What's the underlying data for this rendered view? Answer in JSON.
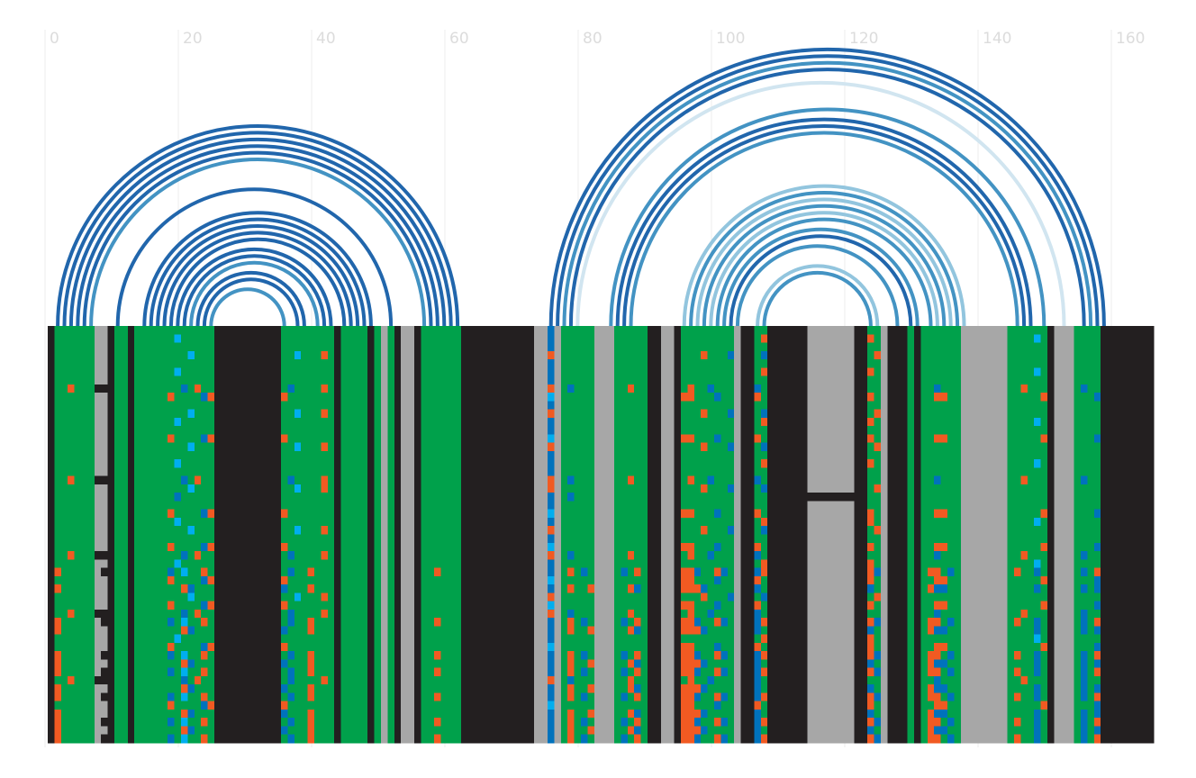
{
  "chart_data": {
    "type": "arc",
    "xlim": [
      0,
      160
    ],
    "xticks": [
      0,
      20,
      40,
      60,
      80,
      100,
      120,
      140,
      160
    ],
    "grid": true,
    "arcs": [
      {
        "i": 1,
        "j": 61,
        "color": "#2166ac"
      },
      {
        "i": 2,
        "j": 60,
        "color": "#2166ac"
      },
      {
        "i": 3,
        "j": 59,
        "color": "#2166ac"
      },
      {
        "i": 4,
        "j": 58,
        "color": "#2166ac"
      },
      {
        "i": 5,
        "j": 57,
        "color": "#2166ac"
      },
      {
        "i": 6,
        "j": 56,
        "color": "#4393c3"
      },
      {
        "i": 10,
        "j": 51,
        "color": "#2166ac"
      },
      {
        "i": 14,
        "j": 48,
        "color": "#2166ac"
      },
      {
        "i": 15,
        "j": 47,
        "color": "#2166ac"
      },
      {
        "i": 16,
        "j": 46,
        "color": "#2166ac"
      },
      {
        "i": 17,
        "j": 45,
        "color": "#2166ac"
      },
      {
        "i": 18,
        "j": 44,
        "color": "#2166ac"
      },
      {
        "i": 19,
        "j": 42,
        "color": "#2166ac"
      },
      {
        "i": 20,
        "j": 41,
        "color": "#2166ac"
      },
      {
        "i": 21,
        "j": 40,
        "color": "#4393c3"
      },
      {
        "i": 22,
        "j": 38,
        "color": "#2166ac"
      },
      {
        "i": 23,
        "j": 37,
        "color": "#2166ac"
      },
      {
        "i": 24,
        "j": 35,
        "color": "#4393c3"
      },
      {
        "i": 75,
        "j": 158,
        "color": "#2166ac"
      },
      {
        "i": 76,
        "j": 157,
        "color": "#2166ac"
      },
      {
        "i": 77,
        "j": 156,
        "color": "#4393c3"
      },
      {
        "i": 78,
        "j": 155,
        "color": "#2166ac"
      },
      {
        "i": 79,
        "j": 152,
        "color": "#d1e5f0"
      },
      {
        "i": 84,
        "j": 149,
        "color": "#4393c3"
      },
      {
        "i": 85,
        "j": 147,
        "color": "#2166ac"
      },
      {
        "i": 86,
        "j": 146,
        "color": "#2166ac"
      },
      {
        "i": 87,
        "j": 145,
        "color": "#4393c3"
      },
      {
        "i": 95,
        "j": 137,
        "color": "#92c5de"
      },
      {
        "i": 96,
        "j": 136,
        "color": "#4393c3"
      },
      {
        "i": 97,
        "j": 135,
        "color": "#92c5de"
      },
      {
        "i": 98,
        "j": 134,
        "color": "#4393c3"
      },
      {
        "i": 99,
        "j": 133,
        "color": "#92c5de"
      },
      {
        "i": 100,
        "j": 132,
        "color": "#4393c3"
      },
      {
        "i": 101,
        "j": 130,
        "color": "#4393c3"
      },
      {
        "i": 102,
        "j": 129,
        "color": "#2166ac"
      },
      {
        "i": 103,
        "j": 127,
        "color": "#4393c3"
      },
      {
        "i": 106,
        "j": 124,
        "color": "#92c5de"
      },
      {
        "i": 107,
        "j": 123,
        "color": "#4393c3"
      }
    ],
    "alignment": {
      "palette": {
        "G": "#00a14b",
        "K": "#231f20",
        "A": "#a7a7a7",
        "O": "#f15a22",
        "B": "#0072bc",
        "C": "#00aeef"
      },
      "rows": [
        "KGGGGGGAAKGGKGGGGGGGGGGGGKKKKKKKKKKGGGGGGGGKGGGGKGAGKAAKGGGGGGKKKKKKKKKKKAABAGGGGGAAAGGGGGKKAAKGGGGGGGGAKKGGKKKKKKAAAAAAAKKGGAKKKGKGGGGGGAAAAAAAGGGGGGKAAAGGGGKKKKKKKK",
        "KGGGGGGAAKGGKGGGGGGCGGGGGKKKKKKKKKKGGGGGGGGKGGGGKGAGKAAKGGGGGGKKKKKKKKKKKAABAGGGGGAAAGGGGGKKAAKGGGGGGGGAKKGOKKKKKKAAAAAAAKKOGAKKKGKGGGGGGAAAAAAAGGGGCGKAAAGGGGKKKKKKKK",
        "KGGGGGGAAKGGKGGGGGGGGGGGGKKKKKKKKKKGGGGGGGGKGGGGKGAGKAAKGGGGGGKKKKKKKKKKKAABAGGGGGAAAGGGGGKKAAKGGGGGGGGAKKGGKKKKKKAAAAAAAKKGGAKKKGKGGGGGGAAAAAAAGGGGGGKAAAGGGGKKKKKKKK",
        "KGGGGGGAAKGGKGGGGGGGGCGGGKKKKKKKKKKGGCGGGOGKGGGGKGAGKAAKGGGGGGKKKKKKKKKKKAAOAGGGGGAAAGGGGGKKAAKGGGOGGGBAKKGBKKKKKKAAAAAAAKKGOAKKKGKGGGGGGAAAAAAAGGGGGGKAAAGGGGKKKKKKKK",
        "KGGGGGGAAKGGKGGGGGGGGGGGGKKKKKKKKKKGGGGGGGGKGGGGKGAGKAAKGGGGGGKKKKKKKKKKKAABAGGGGGAAAGGGGGKKAAKGGGGGGGGAKKGGKKKKKKAAAAAAAKKGGAKKKGKGGGGGGAAAAAAAGGGGGGKAAAGGGGKKKKKKKK",
        "KGGGGGGAAKGGKGGGGGGCGGGGGKKKKKKKKKKGGGGGGGGKGGGGKGAGKAAKGGGGGGKKKKKKKKKKKAABAGGGGGAAAGGGGGKKAAKGGGGGGGGAKKGOKKKKKKAAAAAAAKKOGAKKKGKGGGGGGAAAAAAAGGGGCGKAAAGGGGKKKKKKKK",
        "KGGGGGGAAKGGKGGGGGGGGGGGGKKKKKKKKKKGGGGGGGGKGGGGKGAGKAAKGGGGGGKKKKKKKKKKKAABAGGGGGAAAGGGGGKKAAKGGGGGGGGAKKGGKKKKKKAAAAAAAKKGGAKKKGKGGGGGGAAAAAAAGGGGGGKAAAGGGGKKKKKKKK",
        "KGGOGGGKKKGGKGGGGGGGBGOGGKKKKKKKKKKGBGGGGOGKGGGGKGAGKAAKGGGGGGKKKKKKKKKKKAAOAGBGGGAAAGGOGGKKAAKGOGGBGGGAKKBGKKKKKKAAAAAAAKKGGAKKKGKGGBGGGAAAAAAAGGOGGGKAAAGBGGKKKKKKKK",
        "KGGGGGGAAKGGKGGGGGOGGGGBOKKKKKKKKKKOGGGGGGGKGGGGKGAGKAAKGGGGGGKKKKKKKKKKKAACAGGGGGAAAGGGGGKKAAKOOGGGBGGAKKOGKKKKKKAAAAAAAKKOGAKKKGKGGOOGGAAAAAAAGGGGGOKAAAGGGBKKKKKKKK",
        "KGGGGGGAAKGGKGGGGGGGGGGGGKKKKKKKKKKGGGGGGGGKGGGGKGAGKAAKGGGGGGKKKKKKKKKKKAABAGGGGGAAAGGGGGKKAAKGGGGGGGGAKKGGKKKKKKAAAAAAAKKGGAKKKGKGGGGGGAAAAAAAGGGGGGKAAAGGGGKKKKKKKK",
        "KGGGGGGAAKGGKGGGGGGGGCGGGKKKKKKKKKKGGCGGGOGKGGGGKGAGKAAKGGGGGGKKKKKKKKKKKAAOAGGGGGAAAGGGGGKKAAKGGGOGGGBAKKGBKKKKKKAAAAAAAKKGOAKKKGKGGGGGGAAAAAAAGGGGGGKAAAGGGGKKKKKKKK",
        "KGGGGGGAAKGGKGGGGGGCGGGGGKKKKKKKKKKGGGGGGGGKGGGGKGAGKAAKGGGGGGKKKKKKKKKKKAABAGGGGGAAAGGGGGKKAAKGGGGGGGGAKKGOKKKKKKAAAAAAAKKOGAKKKGKGGGGGGAAAAAAAGGGGCGKAAAGGGGKKKKKKKK",
        "KGGGGGGAAKGGKGGGGGGGGGGGGKKKKKKKKKKGGGGGGGGKGGGGKGAGKAAKGGGGGGKKKKKKKKKKKAABAGGGGGAAAGGGGGKKAAKGGGGGGGGAKKGGKKKKKKAAAAAAAKKGGAKKKGKGGGGGGAAAAAAAGGGGGGKAAAGGGGKKKKKKKK",
        "KGGGGGGAAKGGKGGGGGOGGGGBOKKKKKKKKKKOGGGGGGGKGGGGKGAGKAAKGGGGGGKKKKKKKKKKKAACAGGGGGAAAGGGGGKKAAKOOGGGBGGAKKOGKKKKKKAAAAAAAKKOGAKKKGKGGOOGGAAAAAAAGGGGGOKAAAGGGBKKKKKKKK",
        "KGGGGGGAAKGGKGGGGGGGGCGGGKKKKKKKKKKGGCGGGOGKGGGGKGAGKAAKGGGGGGKKKKKKKKKKKAAOAGGGGGAAAGGGGGKKAAKGGGOGGGBAKKGBKKKKKKAAAAAAAKKGOAKKKGKGGGGGGAAAAAAAGGGGGGKAAAGGGGKKKKKKKK",
        "KGGGGGGAAKGGKGGGGGGGGGGGGKKKKKKKKKKGGGGGGGGKGGGGKGAGKAAKGGGGGGKKKKKKKKKKKAABAGGGGGAAAGGGGGKKAAKGGGGGGGGAKKGGKKKKKKAAAAAAAKKGGAKKKGKGGGGGGAAAAAAAGGGGGGKAAAGGGGKKKKKKKK",
        "KGGGGGGAAKGGKGGGGGGCGGGGGKKKKKKKKKKGGGGGGGGKGGGGKGAGKAAKGGGGGGKKKKKKKKKKKAABAGGGGGAAAGGGGGKKAAKGGGGGGGGAKKGOKKKKKKAAAAAAAKKOGAKKKGKGGGGGGAAAAAAAGGGGCGKAAAGGGGKKKKKKKK",
        "KGGGGGGAAKGGKGGGGGGGGGGGGKKKKKKKKKKGGGGGGGGKGGGGKGAGKAAKGGGGGGKKKKKKKKKKKAABAGGGGGAAAGGGGGKKAAKGGGGGGGGAKKGGKKKKKKAAAAAAAKKGGAKKKGKGGGGGGAAAAAAAGGGGGGKAAAGGGGKKKKKKKK",
        "KGGOGGGKKKGGKGGGGGGGBGOGGKKKKKKKKKKGBGGGGOGKGGGGKGAGKAAKGGGGGGKKKKKKKKKKKAAOAGBGGGAAAGGOGGKKAAKGOGGBGGGAKKBGKKKKKKAAAAAAAKKGGAKKKGKGGBGGGAAAAAAAGGOGGGKAAAGBGGKKKKKKKK",
        "KGGGGGGAAKGGKGGGGGGGGCGGGKKKKKKKKKKGGCGGGOGKGGGGKGAGKAAKGGGGGGKKKKKKKKKKKAAOAGGGGGAAAGGGGGKKAAKGGGOGGGBAKKGBKKKKKKAAAAAAAKKGOAKKKGKGGGGGGAAAAAAAGGGGGGKAAAGGGGKKKKKKKK",
        "KGGGGGGAAKGGKGGGGGGBGGGGGKKKKKKKKKKGGGGGGGGKGGGGKGAGKAAKGGGGGGKKKKKKKKKKKAABAGBGGGAAAGGGGGKKAAKGGGGGGGGAKKGGKKKKKKKKKKKKKKKGGAKKKGKGGGGGGAAAAAAAGGGGGGKAAAGGGGKKKKKKKK",
        "KGGGGGGAAKGGKGGGGGGGGGGGGKKKKKKKKKKGGGGGGGGKGGGGKGAGKAAKGGGGGGKKKKKKKKKKKAABAGGGGGAAAGGGGGKKAAKGGGGGGGGAKKGGKKKKKKAAAAAAAKKGGAKKKGKGGGGGGAAAAAAAGGGGGGKAAAGGGGKKKKKKKK",
        "KGGGGGGAAKGGKGGGGGOGGGGBOKKKKKKKKKKOGGGGGGGKGGGGKGAGKAAKGGGGGGKKKKKKKKKKKAACAGGGGGAAAGGGGGKKAAKOOGGGBGGAKKOGKKKKKKAAAAAAAKKOGAKKKGKGGOOGGAAAAAAAGGGGGOKAAAGGGBKKKKKKKK",
        "KGGGGGGAAKGGKGGGGGGCGGGGGKKKKKKKKKKGGGGGGGGKGGGGKGAGKAAKGGGGGGKKKKKKKKKKKAABAGGGGGAAAGGGGGKKAAKGGGGGGGGAKKGOKKKKKKAAAAAAAKKOGAKKKGKGGGGGGAAAAAAAGGGGCGKAAAGGGGKKKKKKKK",
        "KGGGGGGAAKGGKGGGGGGGGCGGGKKKKKKKKKKGGCGGGOGKGGGGKGAGKAAKGGGGGGKKKKKKKKKKKAAOAGGGGGAAAGGGGGKKAAKGGGOGGGBAKKGBKKKKKKAAAAAAAKKGOAKKKGKGGGGGGAAAAAAAGGGGGGKAAAGGGGKKKKKKKK",
        "KGGGGGGAAKGGKGGGGGGGGGGGGKKKKKKKKKKGGGGGGGGKGGGGKGAGKAAKGGGGGGKKKKKKKKKKKAABAGGGGGAAAGGGGGKKAAKGGGGGGGGAKKGGKKKKKKAAAAAAAKKGGAKKKGKGGGGGGAAAAAAAGGGGGGKAAAGGGGKKKKKKKK",
        "KGGGGGGAAKGGKGGGGGOGGGGBOKKKKKKKKKKOGGGGGGGKGGGGKGAGKAAKGGGGGGKKKKKKKKKKKAACAGGGGGAAAGGGGGKKAAKOOGGGBGGAKKOGKKKKKKAAAAAAAKKOGAKKKGKGGOOGGAAAAAAAGGGGGOKAAAGGGBKKKKKKKK",
        "KGGOGGGKKKGGKGGGGGGGBGOGGKKKKKKKKKKGBGGGGOGKGGGGKGAGKAAKGGGGGGKKKKKKKKKKKAAOAGBGGGAAAGGOGGKKAAKGOGGBGGGAKKBGKKKKKKAAAAAAAKKGGAKKKGKGGBGGGAAAAAAAGGOGGGKAAAGBGGKKKKKKKK",
        "KGGGGGGAAKGGKGGGGGGCGGGGGKKKKKKKKKKGGGGGGGGKGGGGKGAGKAAKGGGGGGKKKKKKKKKKKAABAGGGGGAAAGGGGGKKAAKGGGGGGGGAKKGOKKKKKKAAAAAAAKKOGAKKKGKGGGGGGAAAAAAAGGGGCGKAAAGGGGKKKKKKKK",
        "KOGGGGGAKKGGKGGGGGBGCGGOGKKKKKKKKKKGBGGOGGGKGGGGKGAGKAAKGGOGGGKKKKKKKKKKKAABAGOGBGAAAGBGOGKKAAKOOBGGOBGAKKBOKKKKKKAAAAAAAKKOBAKKKGKGOOGBGAAAAAAAGOGGBGKAAAGBGOKKKKKKKK",
        "KGGGGGGAAKGGKGGGGGOGGGGBOKKKKKKKKKKOGGGGGGGKGGGGKGAGKAAKGGGGGGKKKKKKKKKKKAACAGGGGGAAAGGGGGKKAAKOOGGGBGGAKKOGKKKKKKAAAAAAAKKOGAKKKGKGGOOGGAAAAAAAGGGGGOKAAAGGGBKKKKKKKK",
        "KOGGGGGAAKGGKGGGGGGGOBGGGKKKKKKKKKKBGGGOGGGKGGGGKGAGKAAKGGGGGGKKKKKKKKKKKAABAGOGGOAAAGGOBGKKAAKOOOBGGGGAKKBGKKKKKKAAAAAAAKKBGAKKKGKGOBBGGAAAAAAAGGGGBGKAAAGBGBKKKKKKKK",
        "KGGGGGGAAKGGKGGGGGGGGCGGGKKKKKKKKKKGGCGGGOGKGGGGKGAGKAAKGGGGGGKKKKKKKKKKKAAOAGGGGGAAAGGGGGKKAAKGGGOGGGBAKKGBKKKKKKAAAAAAAKKGOAKKKGKGGGGGGAAAAAAAGGGGGGKAAAGGGGKKKKKKKK",
        "KGGGGGGAAKGGKGGGGGOGGGGBOKKKKKKKKKKOGGGGGGGKGGGGKGAGKAAKGGGGGGKKKKKKKKKKKAACAGGGGGAAAGGGGGKKAAKOOGGGBGGAKKOGKKKKKKAAAAAAAKKOGAKKKGKGGOOGGAAAAAAAGGGGGOKAAAGGGBKKKKKKKK",
        "KGGOGGGKKKGGKGGGGGGGBGOGGKKKKKKKKKKGBGGGGOGKGGGGKGAGKAAKGGGGGGKKKKKKKKKKKAAOAGBGGGAAAGGOGGKKAAKGOGGBGGGAKKBGKKKKKKAAAAAAAKKGGAKKKGKGGBGGGAAAAAAAGGOGGGKAAAGBGGKKKKKKKK",
        "KOGGGGGAKKGGKGGGGGBGCGGOGKKKKKKKKKKGBGGOGGGKGGGGKGAGKAAKGGOGGGKKKKKKKKKKKAABAGOGBGAAAGBGOGKKAAKOOBGGOBGAKKBOKKKKKKAAAAAAAKKOBAKKKGKGOOGBGAAAAAAAGOGGBGKAAAGBGOKKKKKKKK",
        "KOGGGGGAAKGGKGGGGGGGOBGGGKKKKKKKKKKBGGGOGGGKGGGGKGAGKAAKGGGGGGKKKKKKKKKKKAABAGOGGOAAAGGOBGKKAAKOOOBGGGGAKKBGKKKKKKAAAAAAAKKBGAKKKGKGOBBGGAAAAAAAGGGGBGKAAAGBGBKKKKKKKK",
        "KGGGGGGAAKGGKGGGGGGCGGGGGKKKKKKKKKKGGGGGGGGKGGGGKGAGKAAKGGGGGGKKKKKKKKKKKAABAGGGGGAAAGGGGGKKAAKGGGGGGGGAKKGOKKKKKKAAAAAAAKKOGAKKKGKGGGGGGAAAAAAAGGGGCGKAAAGGGGKKKKKKKK",
        "KGGGGGGAAKGGKGGGGGOGGGGBOKKKKKKKKKKOGGGGGGGKGGGGKGAGKAAKGGGGGGKKKKKKKKKKKAACAGGGGGAAAGGGGGKKAAKOOGGGBGGAKKOGKKKKKKAAAAAAAKKOGAKKKGKGGOOGGAAAAAAAGGGGGOKAAAGGGBKKKKKKKK",
        "KOGGGGGAKKGGKGGGGGBGCGGOGKKKKKKKKKKGBGGOGGGKGGGGKGAGKAAKGGOGGGKKKKKKKKKKKAABAGOGBGAAAGBGOGKKAAKOOBGGOBGAKKBOKKKKKKAAAAAAAKKOBAKKKGKGOOGBGAAAAAAAGOGGBGKAAAGBGOKKKKKKKK",
        "KOGGGGGAAKGGKGGGGGGGOBGGGKKKKKKKKKKBGGGOGGGKGGGGKGAGKAAKGGGGGGKKKKKKKKKKKAABAGOGGOAAAGGOBGKKAAKOOOBGGGGAKKBGKKKKKKAAAAAAAKKBGAKKKGKGOBBGGAAAAAAAGGGGBGKAAAGBGBKKKKKKKK",
        "KOGGGGGAKKGGKGGGGGBGCGGOGKKKKKKKKKKGBGGOGGGKGGGGKGAGKAAKGGOGGGKKKKKKKKKKKAABAGOGBGAAAGBGOGKKAAKOOBGGOBGAKKBOKKKKKKAAAAAAAKKOBAKKKGKGOOGBGAAAAAAAGOGGBGKAAAGBGOKKKKKKKK",
        "KGGOGGGKKKGGKGGGGGGGBGOGGKKKKKKKKKKGBGGGGOGKGGGGKGAGKAAKGGGGGGKKKKKKKKKKKAAOAGBGGGAAAGGOGGKKAAKGOGGBGGGAKKBGKKKKKKAAAAAAAKKGGAKKKGKGGBGGGAAAAAAAGGOGGGKAAAGBGGKKKKKKKK",
        "KOGGGGGAAKGGKGGGGGGGOBGGGKKKKKKKKKKBGGGOGGGKGGGGKGAGKAAKGGGGGGKKKKKKKKKKKAABAGOGGOAAAGGOBGKKAAKOOOBGGGGAKKBGKKKKKKAAAAAAAKKBGAKKKGKGOBBGGAAAAAAAGGGGBGKAAAGBGBKKKKKKKK",
        "KOGGGGGAKKGGKGGGGGBGCGGOGKKKKKKKKKKGBGGOGGGKGGGGKGAGKAAKGGOGGGKKKKKKKKKKKAABAGOGBGAAAGBGOGKKAAKOOBGGOBGAKKBOKKKKKKAAAAAAAKKOBAKKKGKGOOGBGAAAAAAAGOGGBGKAAAGBGOKKKKKKKK",
        "KGGGGGGAAKGGKGGGGGOGGGGBOKKKKKKKKKKOGGGGGGGKGGGGKGAGKAAKGGGGGGKKKKKKKKKKKAACAGGGGGAAAGGGGGKKAAKOOGGGBGGAKKOGKKKKKKAAAAAAAKKOGAKKKGKGGOOGGAAAAAAAGGGGGOKAAAGGGBKKKKKKKK",
        "KOGGGGGAAKGGKGGGGGGGOBGGGKKKKKKKKKKBGGGOGGGKGGGGKGAGKAAKGGGGGGKKKKKKKKKKKAABAGOGGOAAAGGOBGKKAAKOOOBGGGGAKKBGKKKKKKAAAAAAAKKBGAKKKGKGOBBGGAAAAAAAGGGGBGKAAAGBGBKKKKKKKK",
        "KOGGGGGAKKGGKGGGGGBGCGGOGKKKKKKKKKKGBGGOGGGKGGGGKGAGKAAKGGOGGGKKKKKKKKKKKAABAGOGBGAAAGBGOGKKAAKOOBGGOBGAKKBOKKKKKKAAAAAAAKKOBAKKKGKGOOGBGAAAAAAAGOGGBGKAAAGBGOKKKKKKKK",
        "KOGGGGGAAKGGKGGGGGGGOBGGGKKKKKKKKKKBGGGOGGGKGGGGKGAGKAAKGGGGGGKKKKKKKKKKKAABAGOGGOAAAGGOBGKKAAKOOOBGGGGAKKBGKKKKKKAAAAAAAKKBGAKKKGKGOBBGGAAAAAAAGGGGBGKAAAGBGBKKKKKKKK",
        "KOGGGGGAKKGGKGGGGGBGCGGOGKKKKKKKKKKGBGGOGGGKGGGGKGAGKAAKGGOGGGKKKKKKKKKKKAABAGOGBGAAAGBGOGKKAAKOOBGGOBGAKKBOKKKKKKAAAAAAAKKOBAKKKGKGOOGBGAAAAAAAGOGGBGKAAAGBGOKKKKKKKK"
      ]
    }
  }
}
